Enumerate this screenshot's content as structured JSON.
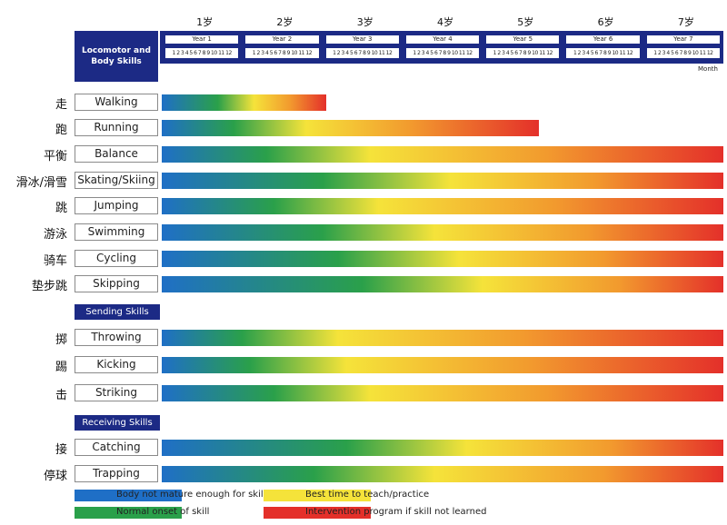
{
  "colors": {
    "blue": "#1f6fc6",
    "green": "#2aa04a",
    "yellow": "#f5e33a",
    "orange": "#f29a2e",
    "red": "#e4302a",
    "header_navy": "#1c2a85"
  },
  "header": {
    "title_line1": "Locomotor and",
    "title_line2": "Body Skills",
    "month_label": "Month",
    "months_text": "1 2 3 4 5 6 7 8 9 10 11 12"
  },
  "sections": {
    "sending": "Sending Skills",
    "receiving": "Receiving Skills"
  },
  "chart_data": {
    "type": "gantt-gradient",
    "title": "Locomotor and Body Skills",
    "xlabel": "Month",
    "x_unit": "years",
    "xlim": [
      0,
      7
    ],
    "age_labels": [
      "1岁",
      "2岁",
      "3岁",
      "4岁",
      "5岁",
      "6岁",
      "7岁"
    ],
    "year_labels": [
      "Year 1",
      "Year 2",
      "Year 3",
      "Year 4",
      "Year 5",
      "Year 6",
      "Year 7"
    ],
    "legend": [
      {
        "color": "blue",
        "label": "Body not mature enough for skill"
      },
      {
        "color": "green",
        "label": "Normal onset of skill"
      },
      {
        "color": "yellow",
        "label": "Best time to teach/practice"
      },
      {
        "color": "red",
        "label": "Intervention program if skill not learned"
      }
    ],
    "groups": [
      {
        "name": "Locomotor and Body Skills",
        "skills": [
          {
            "cn": "走",
            "en": "Walking",
            "end": 2.05,
            "stops": [
              0,
              0.7,
              1.15,
              1.6,
              2.05
            ]
          },
          {
            "cn": "跑",
            "en": "Running",
            "end": 4.7,
            "stops": [
              0,
              0.9,
              1.8,
              3.1,
              4.7
            ]
          },
          {
            "cn": "平衡",
            "en": "Balance",
            "end": 7.0,
            "stops": [
              0,
              1.3,
              2.6,
              4.8,
              7.0
            ]
          },
          {
            "cn": "滑冰/滑雪",
            "en": "Skating/Skiing",
            "end": 7.0,
            "stops": [
              0,
              2.0,
              3.6,
              5.4,
              7.0
            ]
          },
          {
            "cn": "跳",
            "en": "Jumping",
            "end": 7.0,
            "stops": [
              0,
              1.4,
              2.7,
              4.9,
              7.0
            ]
          },
          {
            "cn": "游泳",
            "en": "Swimming",
            "end": 7.0,
            "stops": [
              0,
              2.0,
              3.4,
              5.3,
              7.0
            ]
          },
          {
            "cn": "骑车",
            "en": "Cycling",
            "end": 7.0,
            "stops": [
              0,
              2.2,
              3.7,
              5.5,
              7.0
            ]
          },
          {
            "cn": "垫步跳",
            "en": "Skipping",
            "end": 7.0,
            "stops": [
              0,
              2.5,
              4.0,
              5.7,
              7.0
            ]
          }
        ]
      },
      {
        "name": "Sending Skills",
        "skills": [
          {
            "cn": "掷",
            "en": "Throwing",
            "end": 7.0,
            "stops": [
              0,
              1.0,
              2.2,
              4.5,
              7.0
            ]
          },
          {
            "cn": "踢",
            "en": "Kicking",
            "end": 7.0,
            "stops": [
              0,
              1.1,
              2.3,
              4.6,
              7.0
            ]
          },
          {
            "cn": "击",
            "en": "Striking",
            "end": 7.0,
            "stops": [
              0,
              1.4,
              2.6,
              4.8,
              7.0
            ]
          }
        ]
      },
      {
        "name": "Receiving Skills",
        "skills": [
          {
            "cn": "接",
            "en": "Catching",
            "end": 7.0,
            "stops": [
              0,
              2.3,
              3.8,
              5.6,
              7.0
            ]
          },
          {
            "cn": "停球",
            "en": "Trapping",
            "end": 7.0,
            "stops": [
              0,
              1.9,
              3.4,
              5.5,
              7.0
            ]
          }
        ]
      }
    ]
  }
}
